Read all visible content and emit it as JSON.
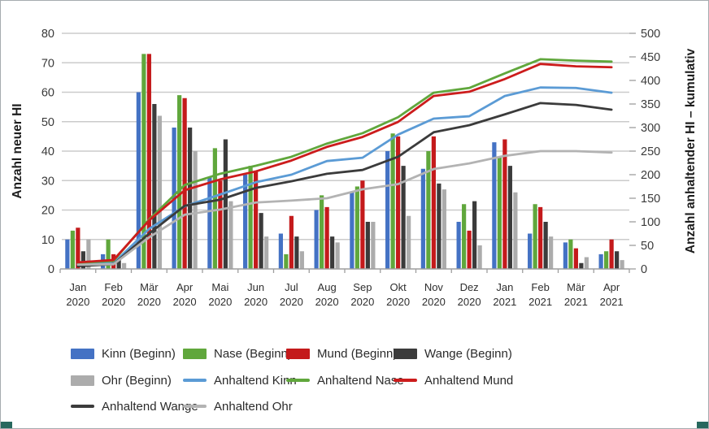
{
  "chart_data": {
    "type": "bar+line combo",
    "categories": [
      {
        "month": "Jan",
        "year": "2020"
      },
      {
        "month": "Feb",
        "year": "2020"
      },
      {
        "month": "Mär",
        "year": "2020"
      },
      {
        "month": "Apr",
        "year": "2020"
      },
      {
        "month": "Mai",
        "year": "2020"
      },
      {
        "month": "Jun",
        "year": "2020"
      },
      {
        "month": "Jul",
        "year": "2020"
      },
      {
        "month": "Aug",
        "year": "2020"
      },
      {
        "month": "Sep",
        "year": "2020"
      },
      {
        "month": "Okt",
        "year": "2020"
      },
      {
        "month": "Nov",
        "year": "2020"
      },
      {
        "month": "Dez",
        "year": "2020"
      },
      {
        "month": "Jan",
        "year": "2021"
      },
      {
        "month": "Feb",
        "year": "2021"
      },
      {
        "month": "Mär",
        "year": "2021"
      },
      {
        "month": "Apr",
        "year": "2021"
      }
    ],
    "left_axis": {
      "label": "Anzahl neuer HI",
      "min": 0,
      "max": 80,
      "step": 10
    },
    "right_axis": {
      "label": "Anzahl anhaltender HI – kumulativ",
      "min": 0,
      "max": 500,
      "step": 50
    },
    "grid": true,
    "legend_position": "bottom",
    "bar_series": [
      {
        "name": "Kinn (Beginn)",
        "color": "#4472C4",
        "values": [
          10,
          5,
          60,
          48,
          31,
          32,
          12,
          20,
          26,
          40,
          34,
          16,
          43,
          12,
          9,
          5
        ]
      },
      {
        "name": "Nase (Beginn)",
        "color": "#60A73C",
        "values": [
          13,
          10,
          73,
          59,
          41,
          35,
          5,
          25,
          28,
          46,
          40,
          22,
          38,
          22,
          10,
          6
        ]
      },
      {
        "name": "Mund (Beginn)",
        "color": "#C41A1B",
        "values": [
          14,
          5,
          73,
          58,
          30,
          33,
          18,
          21,
          30,
          45,
          45,
          13,
          44,
          21,
          7,
          10
        ]
      },
      {
        "name": "Wange (Beginn)",
        "color": "#3B3B3B",
        "values": [
          6,
          3,
          56,
          48,
          44,
          19,
          11,
          11,
          16,
          35,
          29,
          23,
          35,
          16,
          2,
          6
        ]
      },
      {
        "name": "Ohr (Beginn)",
        "color": "#ACACAC",
        "values": [
          10,
          2,
          52,
          40,
          23,
          11,
          6,
          9,
          16,
          18,
          27,
          8,
          26,
          11,
          4,
          3
        ]
      }
    ],
    "line_series": [
      {
        "name": "Anhaltend Kinn",
        "color": "#5B9BD5",
        "values": [
          10,
          12,
          85,
          133,
          158,
          184,
          200,
          229,
          236,
          285,
          319,
          324,
          367,
          385,
          384,
          374
        ]
      },
      {
        "name": "Anhaltend Nase",
        "color": "#60A73C",
        "values": [
          13,
          17,
          105,
          178,
          202,
          219,
          238,
          266,
          288,
          322,
          374,
          384,
          415,
          445,
          442,
          440
        ]
      },
      {
        "name": "Anhaltend Mund",
        "color": "#CC1C1C",
        "values": [
          14,
          19,
          103,
          167,
          190,
          207,
          230,
          259,
          280,
          312,
          367,
          376,
          403,
          435,
          430,
          428
        ]
      },
      {
        "name": "Anhaltend Wange",
        "color": "#3B3B3B",
        "values": [
          6,
          10,
          75,
          134,
          147,
          172,
          186,
          202,
          210,
          238,
          290,
          305,
          328,
          352,
          348,
          338
        ]
      },
      {
        "name": "Anhaltend Ohr",
        "color": "#B3B3B3",
        "values": [
          9,
          10,
          67,
          115,
          126,
          141,
          145,
          150,
          169,
          180,
          212,
          224,
          240,
          250,
          250,
          247
        ]
      }
    ]
  }
}
